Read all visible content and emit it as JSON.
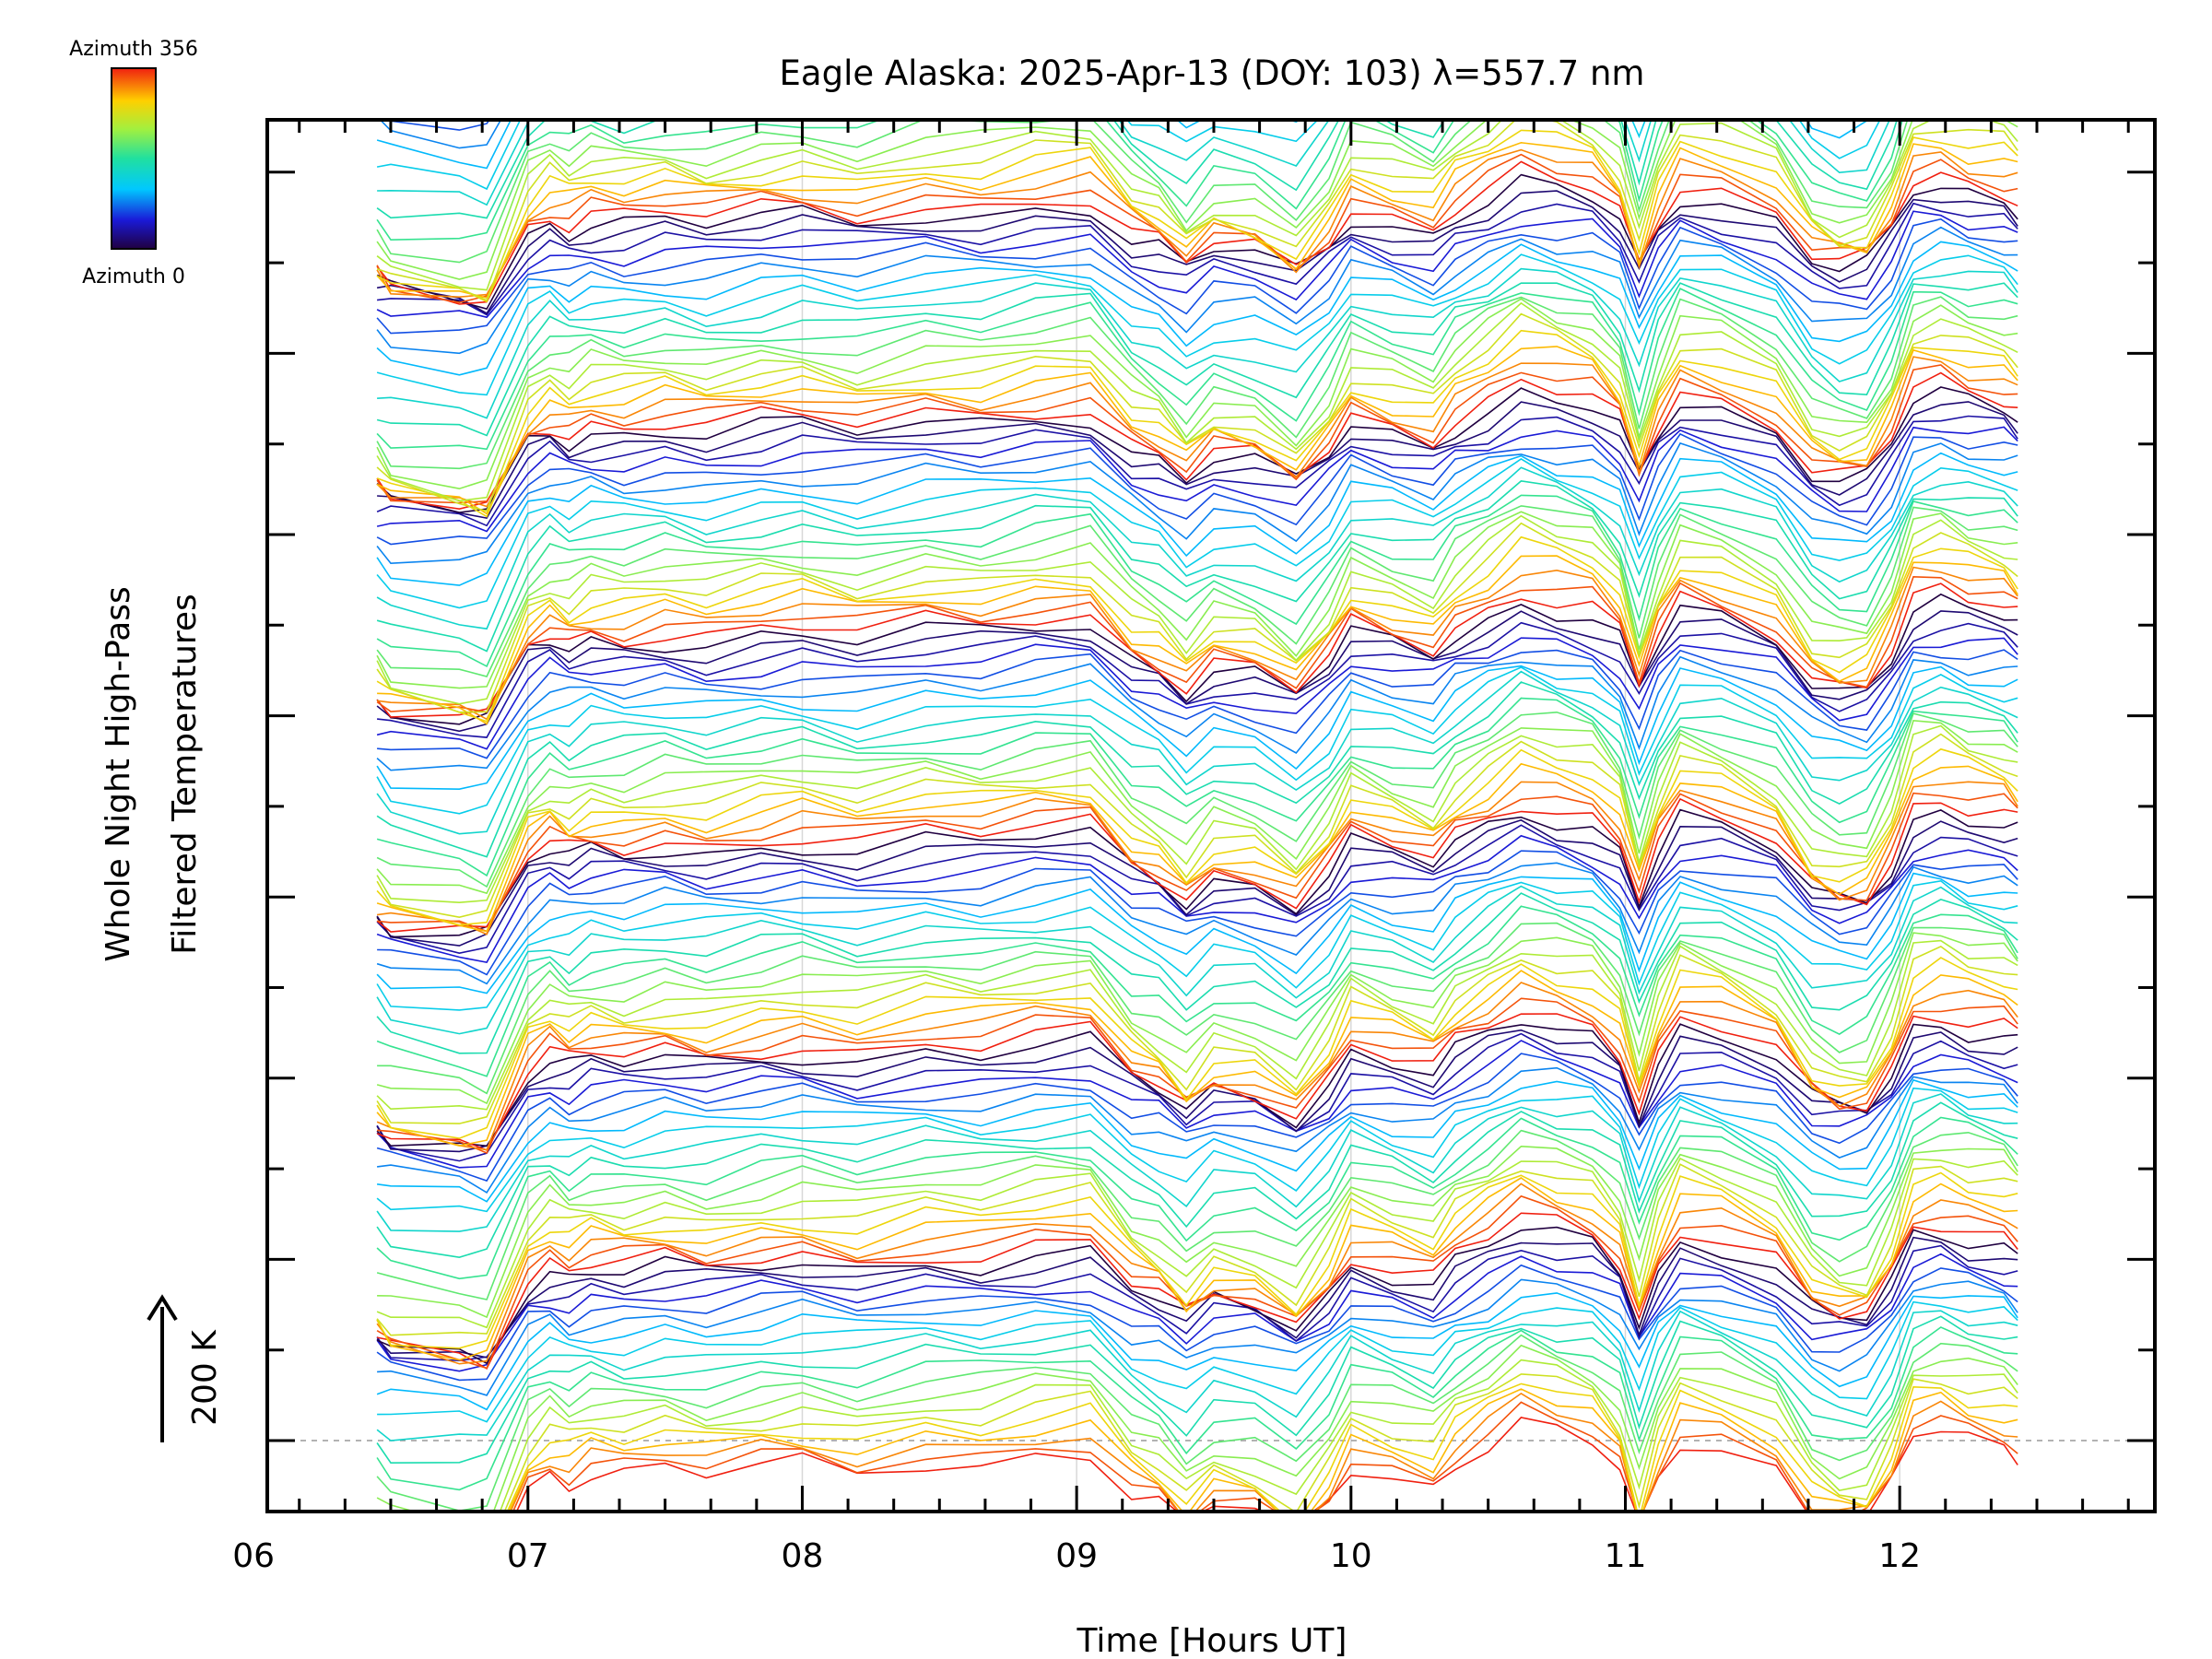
{
  "chart_data": {
    "type": "line",
    "title": "Eagle Alaska: 2025-Apr-13 (DOY: 103) λ=557.7 nm",
    "xlabel": "Time [Hours UT]",
    "ylabel_line1": "Whole Night High-Pass",
    "ylabel_line2": "Filtered Temperatures",
    "scale_label": "200 K",
    "xlim": [
      6.05,
      12.93
    ],
    "x_ticks": [
      {
        "value": 6,
        "label": "06"
      },
      {
        "value": 7,
        "label": "07"
      },
      {
        "value": 8,
        "label": "08"
      },
      {
        "value": 9,
        "label": "09"
      },
      {
        "value": 10,
        "label": "10"
      },
      {
        "value": 11,
        "label": "11"
      },
      {
        "value": 12,
        "label": "12"
      }
    ],
    "colorbar": {
      "top_label": "Azimuth 356",
      "bottom_label": "Azimuth 0",
      "min": 0,
      "max": 356,
      "colormap": "rainbow"
    },
    "grid": true,
    "stack_groups": 7,
    "azimuths_per_group": 20,
    "x": [
      6.45,
      6.5,
      6.75,
      6.85,
      7.0,
      7.08,
      7.15,
      7.23,
      7.35,
      7.5,
      7.65,
      7.85,
      8.0,
      8.2,
      8.45,
      8.65,
      8.85,
      9.05,
      9.2,
      9.3,
      9.4,
      9.5,
      9.65,
      9.8,
      9.92,
      10.0,
      10.15,
      10.3,
      10.38,
      10.5,
      10.62,
      10.75,
      10.88,
      10.98,
      11.05,
      11.12,
      11.2,
      11.35,
      11.55,
      11.68,
      11.78,
      11.88,
      11.97,
      12.05,
      12.15,
      12.25,
      12.38,
      12.43
    ],
    "base_profile_K": [
      -180,
      -200,
      -215,
      -220,
      -80,
      -55,
      -70,
      -55,
      -60,
      -50,
      -60,
      -45,
      -40,
      -55,
      -35,
      -40,
      -25,
      -20,
      -90,
      -110,
      -150,
      -110,
      -120,
      -160,
      -100,
      -40,
      -60,
      -80,
      -40,
      -10,
      25,
      10,
      -5,
      -50,
      -150,
      -60,
      5,
      -10,
      -50,
      -130,
      -150,
      -145,
      -80,
      10,
      20,
      5,
      -5,
      -20
    ]
  }
}
